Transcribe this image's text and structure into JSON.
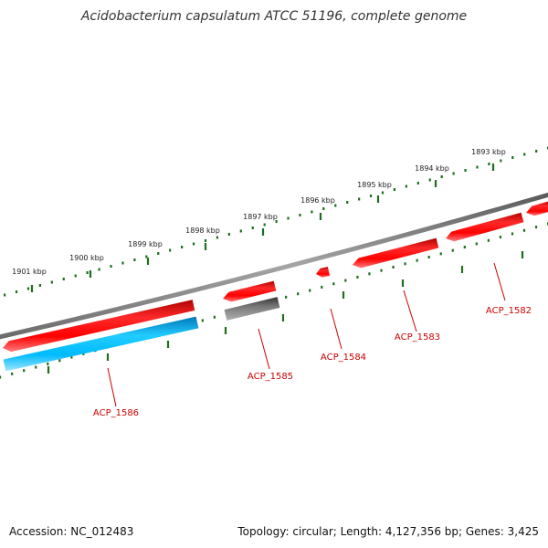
{
  "title": "Acidobacterium capsulatum ATCC 51196, complete genome",
  "footer": {
    "accession": "Accession: NC_012483",
    "summary": "Topology: circular; Length: 4,127,356 bp; Genes: 3,425"
  },
  "colors": {
    "forward_gene": "#ff0000",
    "reverse_gene": "#00bbff",
    "other_feature": "#666666",
    "backbone": "#8c8c8c",
    "ticks": "#1e6e1e",
    "label": "#cc0000"
  },
  "ticks": [
    {
      "kbp": 1893,
      "label": "1893 kbp"
    },
    {
      "kbp": 1894,
      "label": "1894 kbp"
    },
    {
      "kbp": 1895,
      "label": "1895 kbp"
    },
    {
      "kbp": 1896,
      "label": "1896 kbp"
    },
    {
      "kbp": 1897,
      "label": "1897 kbp"
    },
    {
      "kbp": 1898,
      "label": "1898 kbp"
    },
    {
      "kbp": 1899,
      "label": "1899 kbp"
    },
    {
      "kbp": 1900,
      "label": "1900 kbp"
    },
    {
      "kbp": 1901,
      "label": "1901 kbp"
    }
  ],
  "features": [
    {
      "label": "ACP_1582",
      "kind": "gene"
    },
    {
      "label": "ACP_1583",
      "kind": "gene"
    },
    {
      "label": "ACP_1584",
      "kind": "gene"
    },
    {
      "label": "ACP_1585",
      "kind": "gene"
    },
    {
      "label": "ACP_1586",
      "kind": "gene"
    }
  ]
}
